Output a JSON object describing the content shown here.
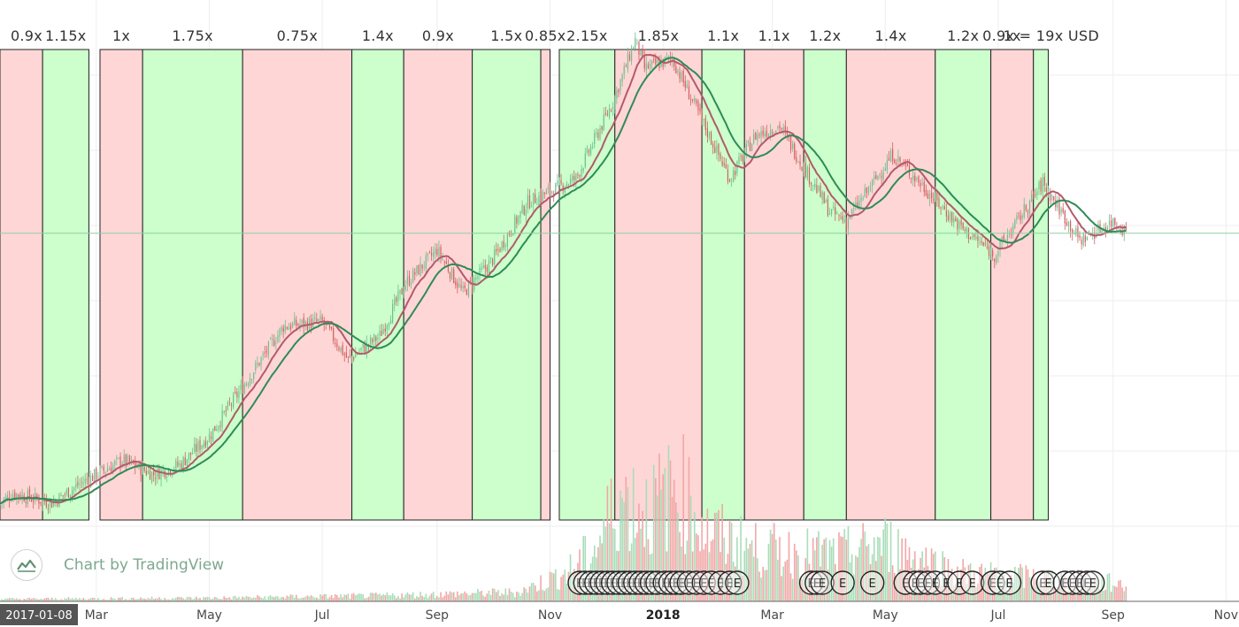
{
  "chart_data": {
    "type": "candlestick",
    "title": "",
    "price_axis_visible": false,
    "grid": true,
    "x_axis": {
      "start_label": "2017-01-08",
      "ticks": [
        "Mar",
        "May",
        "Jul",
        "Sep",
        "Nov",
        "2018",
        "Mar",
        "May",
        "Jul",
        "Sep",
        "Nov"
      ],
      "tick_dates": [
        "2017-03-01",
        "2017-05-01",
        "2017-07-01",
        "2017-09-01",
        "2017-11-01",
        "2018-01-01",
        "2018-03-01",
        "2018-05-01",
        "2018-07-01",
        "2018-09-01",
        "2018-11-01"
      ],
      "range": [
        "2017-01-08",
        "2018-11-08"
      ]
    },
    "log_price_range": [
      0,
      1
    ],
    "price_trend": [
      {
        "date": "2017-01-08",
        "v": 0.03
      },
      {
        "date": "2017-01-15",
        "v": 0.05
      },
      {
        "date": "2017-02-05",
        "v": 0.03
      },
      {
        "date": "2017-02-20",
        "v": 0.07
      },
      {
        "date": "2017-03-15",
        "v": 0.12
      },
      {
        "date": "2017-04-01",
        "v": 0.09
      },
      {
        "date": "2017-04-15",
        "v": 0.11
      },
      {
        "date": "2017-05-01",
        "v": 0.17
      },
      {
        "date": "2017-06-10",
        "v": 0.4
      },
      {
        "date": "2017-07-01",
        "v": 0.41
      },
      {
        "date": "2017-07-15",
        "v": 0.33
      },
      {
        "date": "2017-08-01",
        "v": 0.38
      },
      {
        "date": "2017-08-15",
        "v": 0.49
      },
      {
        "date": "2017-09-01",
        "v": 0.56
      },
      {
        "date": "2017-09-15",
        "v": 0.47
      },
      {
        "date": "2017-10-01",
        "v": 0.54
      },
      {
        "date": "2017-10-20",
        "v": 0.66
      },
      {
        "date": "2017-11-15",
        "v": 0.71
      },
      {
        "date": "2017-12-05",
        "v": 0.87
      },
      {
        "date": "2017-12-17",
        "v": 1.0
      },
      {
        "date": "2017-12-22",
        "v": 0.94
      },
      {
        "date": "2018-01-06",
        "v": 0.96
      },
      {
        "date": "2018-02-06",
        "v": 0.71
      },
      {
        "date": "2018-02-20",
        "v": 0.8
      },
      {
        "date": "2018-03-05",
        "v": 0.82
      },
      {
        "date": "2018-04-01",
        "v": 0.64
      },
      {
        "date": "2018-04-10",
        "v": 0.62
      },
      {
        "date": "2018-05-05",
        "v": 0.76
      },
      {
        "date": "2018-05-15",
        "v": 0.72
      },
      {
        "date": "2018-06-10",
        "v": 0.61
      },
      {
        "date": "2018-06-29",
        "v": 0.55
      },
      {
        "date": "2018-07-25",
        "v": 0.7
      },
      {
        "date": "2018-08-14",
        "v": 0.58
      },
      {
        "date": "2018-09-01",
        "v": 0.62
      },
      {
        "date": "2018-09-08",
        "v": 0.6
      }
    ],
    "moving_averages": [
      {
        "name": "",
        "color": "#b35a6b",
        "lag_days": 6
      },
      {
        "name": "",
        "color": "#2e8b57",
        "lag_days": 12
      }
    ],
    "price_line_level": 0.595,
    "periods": [
      {
        "label": "0.9x",
        "start": "2017-01-08",
        "end": "2017-01-31",
        "trend": "down"
      },
      {
        "label": "1.15x",
        "start": "2017-01-31",
        "end": "2017-02-25",
        "trend": "up"
      },
      {
        "label": "1x",
        "start": "2017-03-03",
        "end": "2017-03-26",
        "trend": "down"
      },
      {
        "label": "1.75x",
        "start": "2017-03-26",
        "end": "2017-05-19",
        "trend": "up"
      },
      {
        "label": "0.75x",
        "start": "2017-05-19",
        "end": "2017-07-17",
        "trend": "down"
      },
      {
        "label": "1.4x",
        "start": "2017-07-17",
        "end": "2017-08-14",
        "trend": "up"
      },
      {
        "label": "0.9x",
        "start": "2017-08-14",
        "end": "2017-09-20",
        "trend": "down"
      },
      {
        "label": "1.5x",
        "start": "2017-09-20",
        "end": "2017-10-27",
        "trend": "up"
      },
      {
        "label": "0.85x",
        "start": "2017-10-27",
        "end": "2017-11-01",
        "trend": "down"
      },
      {
        "label": "2.15x",
        "start": "2017-11-06",
        "end": "2017-12-06",
        "trend": "up"
      },
      {
        "label": "1.85x",
        "start": "2017-12-06",
        "end": "2018-01-22",
        "trend": "down"
      },
      {
        "label": "1.1x",
        "start": "2018-01-22",
        "end": "2018-02-14",
        "trend": "up"
      },
      {
        "label": "1.1x",
        "start": "2018-02-14",
        "end": "2018-03-18",
        "trend": "down"
      },
      {
        "label": "1.2x",
        "start": "2018-03-18",
        "end": "2018-04-10",
        "trend": "up"
      },
      {
        "label": "1.4x",
        "start": "2018-04-10",
        "end": "2018-05-28",
        "trend": "down"
      },
      {
        "label": "1.2x",
        "start": "2018-05-28",
        "end": "2018-06-27",
        "trend": "up"
      },
      {
        "label": "1x",
        "start": "2018-06-27",
        "end": "2018-07-20",
        "trend": "down"
      },
      {
        "label": "0.9x = 19x USD",
        "start": "2018-07-20",
        "end": "2018-07-28",
        "trend": "up"
      }
    ],
    "volume_trend": [
      {
        "date": "2017-01-08",
        "v": 0.02
      },
      {
        "date": "2017-05-01",
        "v": 0.03
      },
      {
        "date": "2017-08-01",
        "v": 0.05
      },
      {
        "date": "2017-10-15",
        "v": 0.08
      },
      {
        "date": "2017-11-10",
        "v": 0.25
      },
      {
        "date": "2017-11-25",
        "v": 0.45
      },
      {
        "date": "2017-12-08",
        "v": 0.9
      },
      {
        "date": "2017-12-25",
        "v": 0.8
      },
      {
        "date": "2018-01-10",
        "v": 1.0
      },
      {
        "date": "2018-01-25",
        "v": 0.6
      },
      {
        "date": "2018-02-20",
        "v": 0.45
      },
      {
        "date": "2018-04-05",
        "v": 0.4
      },
      {
        "date": "2018-05-01",
        "v": 0.5
      },
      {
        "date": "2018-06-10",
        "v": 0.25
      },
      {
        "date": "2018-09-08",
        "v": 0.15
      }
    ],
    "earnings_marker_label": "E",
    "earnings_dates": [
      "2017-11-17",
      "2017-11-20",
      "2017-11-23",
      "2017-11-26",
      "2017-11-29",
      "2017-12-02",
      "2017-12-05",
      "2017-12-08",
      "2017-12-11",
      "2017-12-14",
      "2017-12-17",
      "2017-12-20",
      "2017-12-23",
      "2017-12-26",
      "2017-12-29",
      "2018-01-02",
      "2018-01-05",
      "2018-01-08",
      "2018-01-11",
      "2018-01-15",
      "2018-01-19",
      "2018-01-23",
      "2018-01-27",
      "2018-02-01",
      "2018-02-06",
      "2018-02-10",
      "2018-03-22",
      "2018-03-25",
      "2018-03-28",
      "2018-04-08",
      "2018-04-24",
      "2018-05-12",
      "2018-05-17",
      "2018-05-20",
      "2018-05-24",
      "2018-05-28",
      "2018-06-03",
      "2018-06-10",
      "2018-06-17",
      "2018-06-28",
      "2018-07-02",
      "2018-07-07",
      "2018-07-25",
      "2018-07-28",
      "2018-08-06",
      "2018-08-10",
      "2018-08-14",
      "2018-08-18",
      "2018-08-21"
    ]
  },
  "watermark": {
    "text": "Chart by TradingView",
    "icon": "tradingview-logo-icon"
  },
  "colors": {
    "up_band": "#ccffcc",
    "down_band": "#ffd6d6",
    "up_candle": "#6fbf8f",
    "down_candle": "#d06060",
    "up_volume": "#a9ddb8",
    "down_volume": "#f2a7a7",
    "grid": "#eeeeee",
    "price_line": "#8fcf9f",
    "badge_bg": "#555555"
  }
}
